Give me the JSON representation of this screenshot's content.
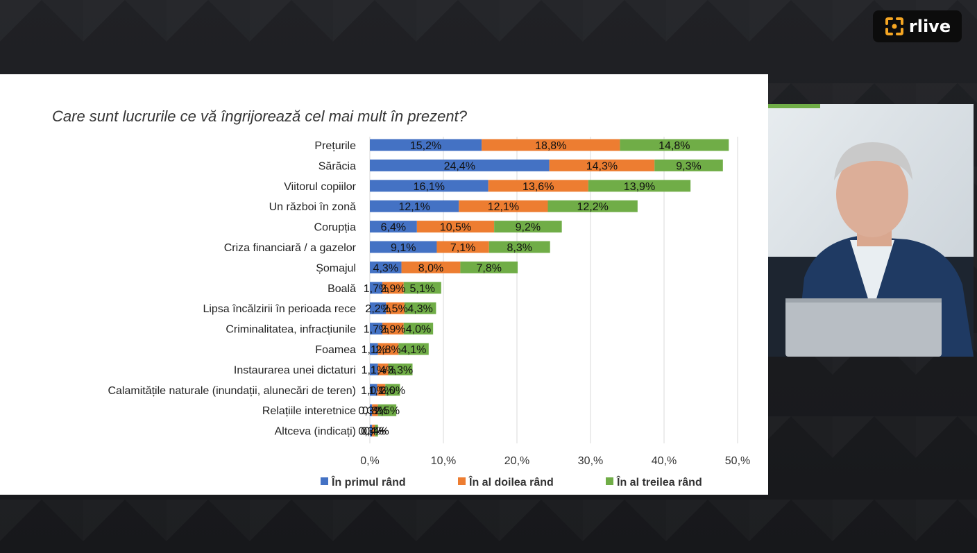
{
  "logo": {
    "text": "rlive",
    "icon": "rlive-logo-icon",
    "accent": "#f5a623"
  },
  "colors": {
    "series1": "#4472c4",
    "series2": "#ed7d31",
    "series3": "#70ad47"
  },
  "chart_data": {
    "type": "bar",
    "orientation": "horizontal",
    "stacked": true,
    "title": "Care sunt lucrurile ce vă îngrijorează cel mai mult în prezent?",
    "categories": [
      "Prețurile",
      "Sărăcia",
      "Viitorul copiilor",
      "Un război în zonă",
      "Corupția",
      "Criza financiară / a gazelor",
      "Șomajul",
      "Boală",
      "Lipsa încălzirii în perioada rece",
      "Criminalitatea, infracțiunile",
      "Foamea",
      "Instaurarea unei dictaturi",
      "Calamitățile naturale (inundații, alunecări de teren)",
      "Relațiile interetnice",
      "Altceva (indicați)"
    ],
    "series": [
      {
        "name": "În primul rând",
        "color": "#4472c4",
        "values": [
          15.2,
          24.4,
          16.1,
          12.1,
          6.4,
          9.1,
          4.3,
          1.7,
          2.2,
          1.7,
          1.1,
          1.1,
          1.0,
          0.3,
          0.3
        ],
        "labels": [
          "15,2%",
          "24,4%",
          "16,1%",
          "12,1%",
          "6,4%",
          "9,1%",
          "4,3%",
          "1,7%",
          "2,2%",
          "1,7%",
          "1,1%",
          "1,1%",
          "1,0%",
          "0,3%",
          "0,3%"
        ]
      },
      {
        "name": "În al doilea rând",
        "color": "#ed7d31",
        "values": [
          18.8,
          14.3,
          13.6,
          12.1,
          10.5,
          7.1,
          8.0,
          2.9,
          2.5,
          2.9,
          2.8,
          1.4,
          1.1,
          0.8,
          0.4
        ],
        "labels": [
          "18,8%",
          "14,3%",
          "13,6%",
          "12,1%",
          "10,5%",
          "7,1%",
          "8,0%",
          "2,9%",
          "2,5%",
          "2,9%",
          "2,8%",
          "1,4%",
          "1,1%",
          "0,8%",
          "0,4%"
        ]
      },
      {
        "name": "În al treilea rând",
        "color": "#70ad47",
        "values": [
          14.8,
          9.3,
          13.9,
          12.2,
          9.2,
          8.3,
          7.8,
          5.1,
          4.3,
          4.0,
          4.1,
          3.3,
          2.0,
          2.5,
          0.4
        ],
        "labels": [
          "14,8%",
          "9,3%",
          "13,9%",
          "12,2%",
          "9,2%",
          "8,3%",
          "7,8%",
          "5,1%",
          "4,3%",
          "4,0%",
          "4,1%",
          "3,3%",
          "2,0%",
          "2,5%",
          "0,4%"
        ]
      }
    ],
    "x_ticks": [
      "0,%",
      "10,%",
      "20,%",
      "30,%",
      "40,%",
      "50,%"
    ],
    "xlim": [
      0,
      50
    ],
    "grid": true,
    "legend": "bottom"
  }
}
